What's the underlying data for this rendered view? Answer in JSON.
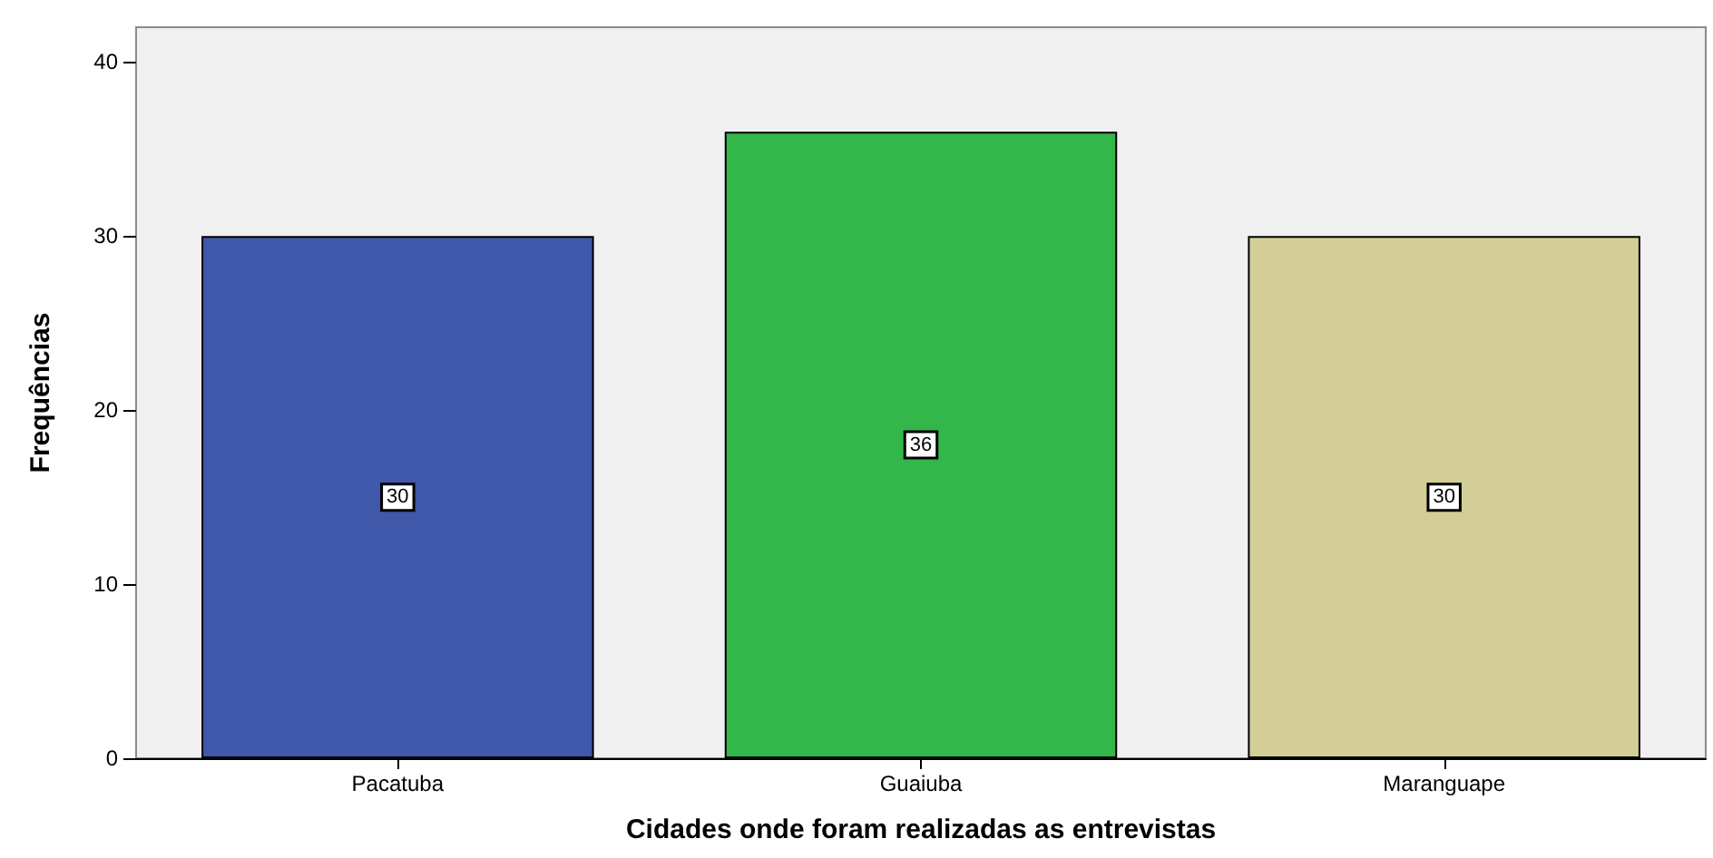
{
  "chart_data": {
    "type": "bar",
    "xlabel": "Cidades onde foram realizadas as entrevistas",
    "ylabel": "Frequências",
    "categories": [
      "Pacatuba",
      "Guaiuba",
      "Maranguape"
    ],
    "values": [
      30,
      36,
      30
    ],
    "colors": [
      "#3f58a9",
      "#33b64a",
      "#d3cd97"
    ],
    "ylim": [
      0,
      42
    ],
    "yticks": [
      0,
      10,
      20,
      30,
      40
    ],
    "grid": false,
    "data_labels": true
  }
}
